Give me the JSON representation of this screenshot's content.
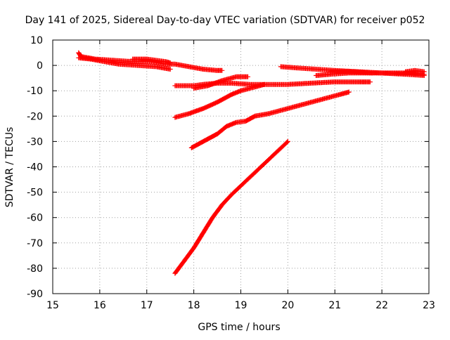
{
  "chart_data": {
    "type": "scatter",
    "title": "Day 141 of 2025, Sidereal Day-to-day VTEC variation (SDTVAR) for receiver p052",
    "xlabel": "GPS time / hours",
    "ylabel": "SDTVAR / TECUs",
    "xlim": [
      15,
      23
    ],
    "ylim": [
      -90,
      10
    ],
    "xticks": [
      15,
      16,
      17,
      18,
      19,
      20,
      21,
      22,
      23
    ],
    "yticks": [
      10,
      0,
      -10,
      -20,
      -30,
      -40,
      -50,
      -60,
      -70,
      -80,
      -90
    ],
    "grid": true,
    "legend": "none",
    "marker": "plus",
    "color": "#ff0000",
    "tracks": [
      [
        [
          15.55,
          5.0
        ],
        [
          15.6,
          3.5
        ],
        [
          15.9,
          2.5
        ],
        [
          16.3,
          2.0
        ],
        [
          16.7,
          1.5
        ],
        [
          17.1,
          1.5
        ],
        [
          17.4,
          0.5
        ],
        [
          17.6,
          0.5
        ],
        [
          17.9,
          -0.5
        ],
        [
          18.2,
          -1.5
        ],
        [
          18.5,
          -2.0
        ],
        [
          18.6,
          -2.0
        ]
      ],
      [
        [
          15.55,
          3.0
        ],
        [
          15.8,
          2.5
        ],
        [
          16.1,
          1.5
        ],
        [
          16.4,
          0.5
        ],
        [
          16.8,
          0.0
        ],
        [
          17.2,
          -0.5
        ],
        [
          17.5,
          -1.5
        ]
      ],
      [
        [
          16.7,
          2.5
        ],
        [
          17.0,
          2.5
        ],
        [
          17.4,
          1.5
        ],
        [
          17.5,
          1.0
        ]
      ],
      [
        [
          17.6,
          -8.0
        ],
        [
          17.8,
          -8.0
        ],
        [
          18.0,
          -8.0
        ],
        [
          18.2,
          -7.5
        ],
        [
          18.5,
          -7.0
        ],
        [
          18.8,
          -7.0
        ],
        [
          19.2,
          -7.5
        ],
        [
          19.6,
          -7.5
        ],
        [
          20.0,
          -7.5
        ],
        [
          20.5,
          -7.0
        ],
        [
          21.0,
          -6.5
        ],
        [
          21.5,
          -6.5
        ],
        [
          21.75,
          -6.5
        ]
      ],
      [
        [
          18.0,
          -9.0
        ],
        [
          18.3,
          -8.0
        ],
        [
          18.6,
          -6.0
        ],
        [
          18.9,
          -4.5
        ],
        [
          19.15,
          -4.5
        ]
      ],
      [
        [
          17.6,
          -20.5
        ],
        [
          17.9,
          -19.0
        ],
        [
          18.2,
          -17.0
        ],
        [
          18.5,
          -14.5
        ],
        [
          18.8,
          -11.5
        ],
        [
          19.0,
          -10.0
        ],
        [
          19.3,
          -8.5
        ],
        [
          19.5,
          -7.5
        ]
      ],
      [
        [
          17.95,
          -32.5
        ],
        [
          18.1,
          -31.0
        ],
        [
          18.3,
          -29.0
        ],
        [
          18.5,
          -27.0
        ],
        [
          18.7,
          -24.0
        ],
        [
          18.9,
          -22.5
        ],
        [
          19.1,
          -22.0
        ],
        [
          19.3,
          -20.0
        ],
        [
          19.6,
          -19.0
        ],
        [
          19.9,
          -17.5
        ],
        [
          20.2,
          -16.0
        ],
        [
          20.5,
          -14.5
        ],
        [
          20.8,
          -13.0
        ],
        [
          21.1,
          -11.5
        ],
        [
          21.3,
          -10.5
        ]
      ],
      [
        [
          17.6,
          -82.0
        ],
        [
          17.8,
          -77.0
        ],
        [
          18.0,
          -72.0
        ],
        [
          18.2,
          -66.0
        ],
        [
          18.4,
          -60.0
        ],
        [
          18.6,
          -55.0
        ],
        [
          18.8,
          -51.0
        ],
        [
          19.0,
          -47.5
        ],
        [
          19.2,
          -44.0
        ],
        [
          19.4,
          -40.5
        ],
        [
          19.6,
          -37.0
        ],
        [
          19.8,
          -33.5
        ],
        [
          20.0,
          -30.0
        ]
      ],
      [
        [
          19.85,
          -0.5
        ],
        [
          20.2,
          -1.0
        ],
        [
          20.6,
          -1.5
        ],
        [
          21.0,
          -2.0
        ],
        [
          21.5,
          -2.5
        ],
        [
          22.0,
          -3.0
        ],
        [
          22.5,
          -3.5
        ],
        [
          22.9,
          -4.0
        ]
      ],
      [
        [
          20.6,
          -4.0
        ],
        [
          20.9,
          -3.5
        ],
        [
          21.3,
          -3.0
        ],
        [
          21.8,
          -3.0
        ],
        [
          22.3,
          -3.0
        ],
        [
          22.6,
          -3.0
        ],
        [
          22.9,
          -3.5
        ]
      ],
      [
        [
          20.9,
          -2.5
        ],
        [
          21.4,
          -2.5
        ],
        [
          21.8,
          -3.0
        ]
      ],
      [
        [
          22.5,
          -2.5
        ],
        [
          22.7,
          -2.0
        ],
        [
          22.9,
          -2.5
        ]
      ]
    ]
  }
}
